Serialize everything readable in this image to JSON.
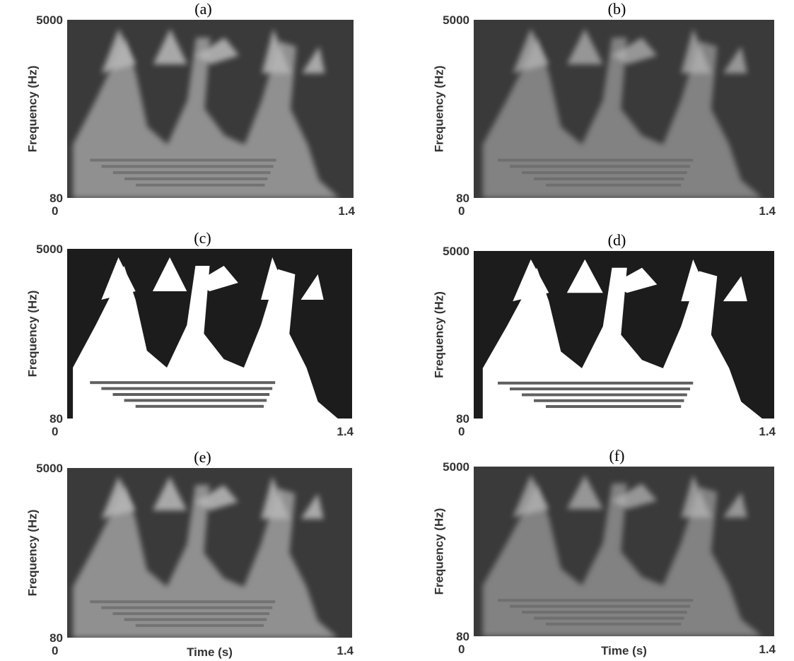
{
  "panels": [
    {
      "label": "(a)",
      "y_label": "Frequency (Hz)",
      "y_top": 5000,
      "y_bottom": 80,
      "x_left": 0,
      "x_right": 1.4
    },
    {
      "label": "(b)",
      "y_label": "Frequency (Hz)",
      "y_top": 5000,
      "y_bottom": 80,
      "x_left": 0,
      "x_right": 1.4
    },
    {
      "label": "(c)",
      "y_label": "Frequency (Hz)",
      "y_top": 5000,
      "y_bottom": 80,
      "x_left": 0,
      "x_right": 1.4
    },
    {
      "label": "(d)",
      "y_label": "Frequency (Hz)",
      "y_top": 5000,
      "y_bottom": 80,
      "x_left": 0,
      "x_right": 1.4
    },
    {
      "label": "(e)",
      "y_label": "Frequency (Hz)",
      "y_top": 5000,
      "y_bottom": 80,
      "x_left": 0,
      "x_right": 1.4,
      "x_label": "Time (s)"
    },
    {
      "label": "(f)",
      "y_label": "Frequency (Hz)",
      "y_top": 5000,
      "y_bottom": 80,
      "x_left": 0,
      "x_right": 1.4,
      "x_label": "Time (s)"
    }
  ]
}
